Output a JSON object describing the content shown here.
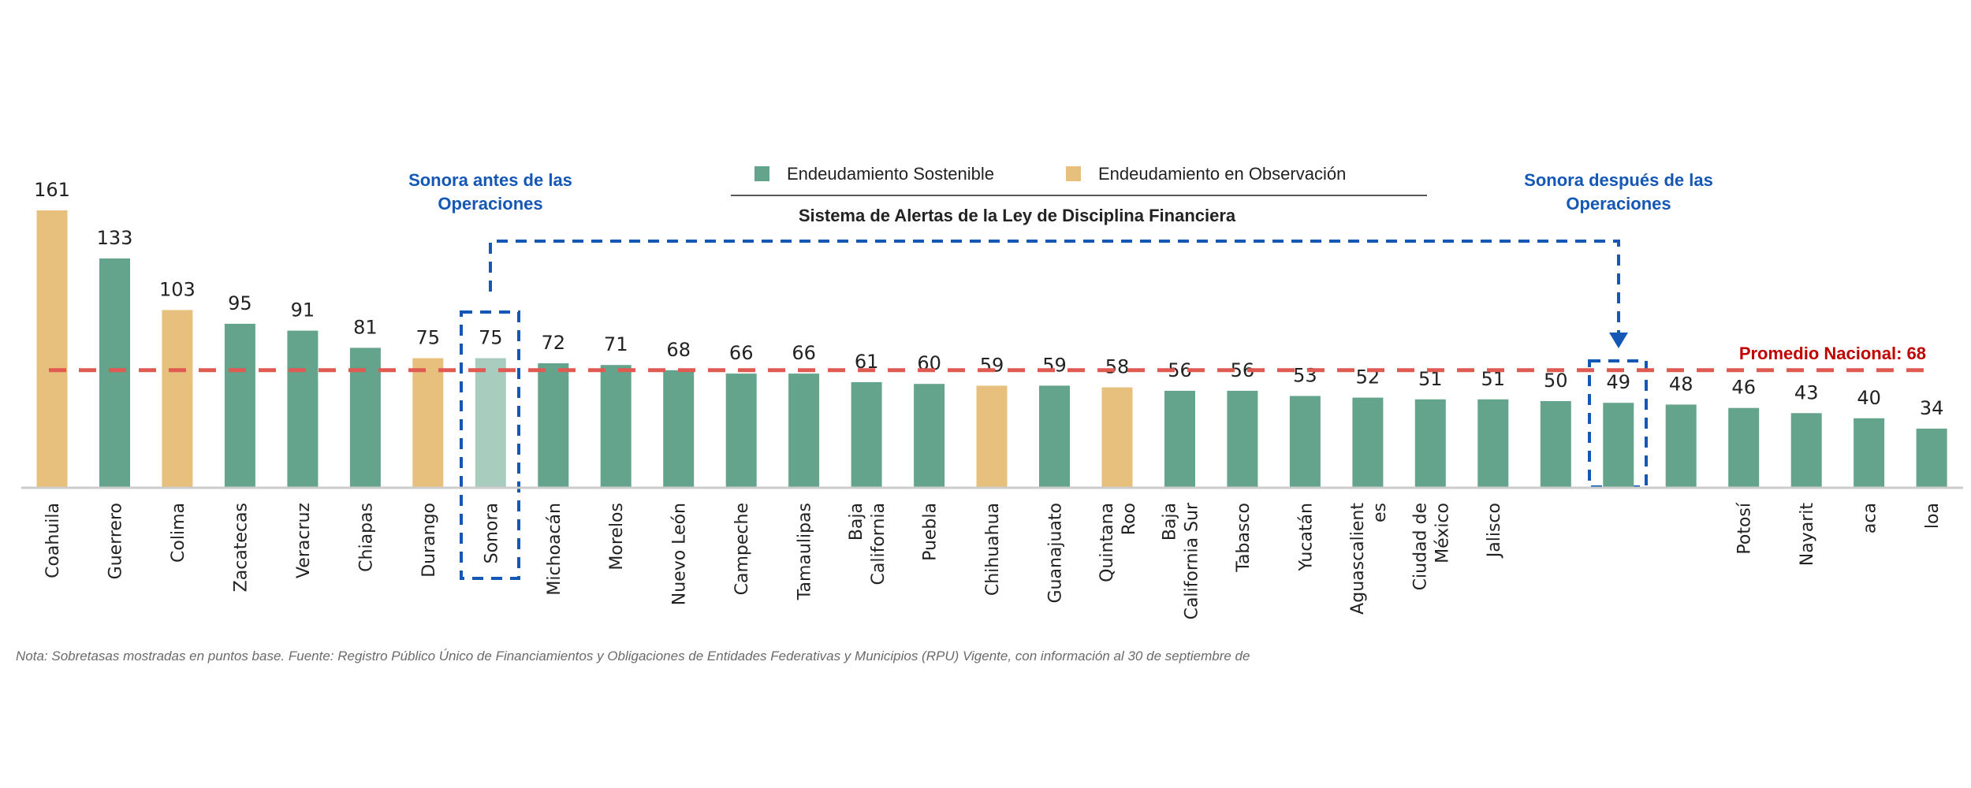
{
  "chart_data": {
    "type": "bar",
    "title": "Sistema de Alertas de la Ley de Disciplina Financiera",
    "xlabel": "",
    "ylabel": "",
    "ylim": [
      0,
      161
    ],
    "grid": false,
    "units": "puntos base",
    "legend_position": "top-center",
    "legend": [
      {
        "name": "Endeudamiento Sostenible",
        "color": "#64A48C"
      },
      {
        "name": "Endeudamiento en Observación",
        "color": "#E8C07D"
      }
    ],
    "categories": [
      "Coahuila",
      "Guerrero",
      "Colima",
      "Zacatecas",
      "Veracruz",
      "Chiapas",
      "Durango",
      "Sonora",
      "Michoacán",
      "Morelos",
      "Nuevo León",
      "Campeche",
      "Tamaulipas",
      "Baja California",
      "Puebla",
      "Chihuahua",
      "Guanajuato",
      "Quintana Roo",
      "Baja California Sur",
      "Tabasco",
      "Yucatán",
      "Aguascalientes",
      "Ciudad de México",
      "Jalisco",
      "",
      "",
      "",
      "Potosí",
      "Nayarit",
      "aca",
      "loa"
    ],
    "category_label_lines": [
      [
        "Coahuila"
      ],
      [
        "Guerrero"
      ],
      [
        "Colima"
      ],
      [
        "Zacatecas"
      ],
      [
        "Veracruz"
      ],
      [
        "Chiapas"
      ],
      [
        "Durango"
      ],
      [
        "Sonora"
      ],
      [
        "Michoacán"
      ],
      [
        "Morelos"
      ],
      [
        "Nuevo León"
      ],
      [
        "Campeche"
      ],
      [
        "Tamaulipas"
      ],
      [
        "Baja",
        "California"
      ],
      [
        "Puebla"
      ],
      [
        "Chihuahua"
      ],
      [
        "Guanajuato"
      ],
      [
        "Quintana",
        "Roo"
      ],
      [
        "Baja",
        "California Sur"
      ],
      [
        "Tabasco"
      ],
      [
        "Yucatán"
      ],
      [
        "Aguascalient",
        "es"
      ],
      [
        "Ciudad de",
        "México"
      ],
      [
        "Jalisco"
      ],
      [],
      [],
      [],
      [
        "Potosí"
      ],
      [
        "Nayarit"
      ],
      [
        "aca"
      ],
      [
        "loa"
      ]
    ],
    "values": [
      161,
      133,
      103,
      95,
      91,
      81,
      75,
      75,
      72,
      71,
      68,
      66,
      66,
      61,
      60,
      59,
      59,
      58,
      56,
      56,
      53,
      52,
      51,
      51,
      50,
      49,
      48,
      46,
      43,
      40,
      34
    ],
    "status": [
      "observacion",
      "sostenible",
      "observacion",
      "sostenible",
      "sostenible",
      "sostenible",
      "observacion",
      "sonora_antes",
      "sostenible",
      "sostenible",
      "sostenible",
      "sostenible",
      "sostenible",
      "sostenible",
      "sostenible",
      "observacion",
      "sostenible",
      "observacion",
      "sostenible",
      "sostenible",
      "sostenible",
      "sostenible",
      "sostenible",
      "sostenible",
      "sostenible",
      "sonora_despues",
      "sostenible",
      "sostenible",
      "sostenible",
      "sostenible",
      "sostenible"
    ],
    "colors": {
      "sostenible": "#64A48C",
      "observacion": "#E8C07D",
      "sonora_antes": "#A8CDBE",
      "sonora_despues": "#64A48C"
    },
    "reference_line": {
      "label": "Promedio Nacional: 68",
      "value": 68,
      "color": "#E05A52",
      "style": "dashed"
    },
    "annotations": {
      "before": {
        "lines": [
          "Sonora antes de las",
          "Operaciones"
        ],
        "category_index": 7,
        "color": "#1557B5"
      },
      "after": {
        "lines": [
          "Sonora después de las",
          "Operaciones"
        ],
        "category_index": 25,
        "color": "#1557B5"
      }
    },
    "note": "Nota: Sobretasas mostradas en puntos base. Fuente: Registro Público Único de Financiamientos y Obligaciones de Entidades Federativas y Municipios (RPU) Vigente, con información al 30 de septiembre de"
  }
}
